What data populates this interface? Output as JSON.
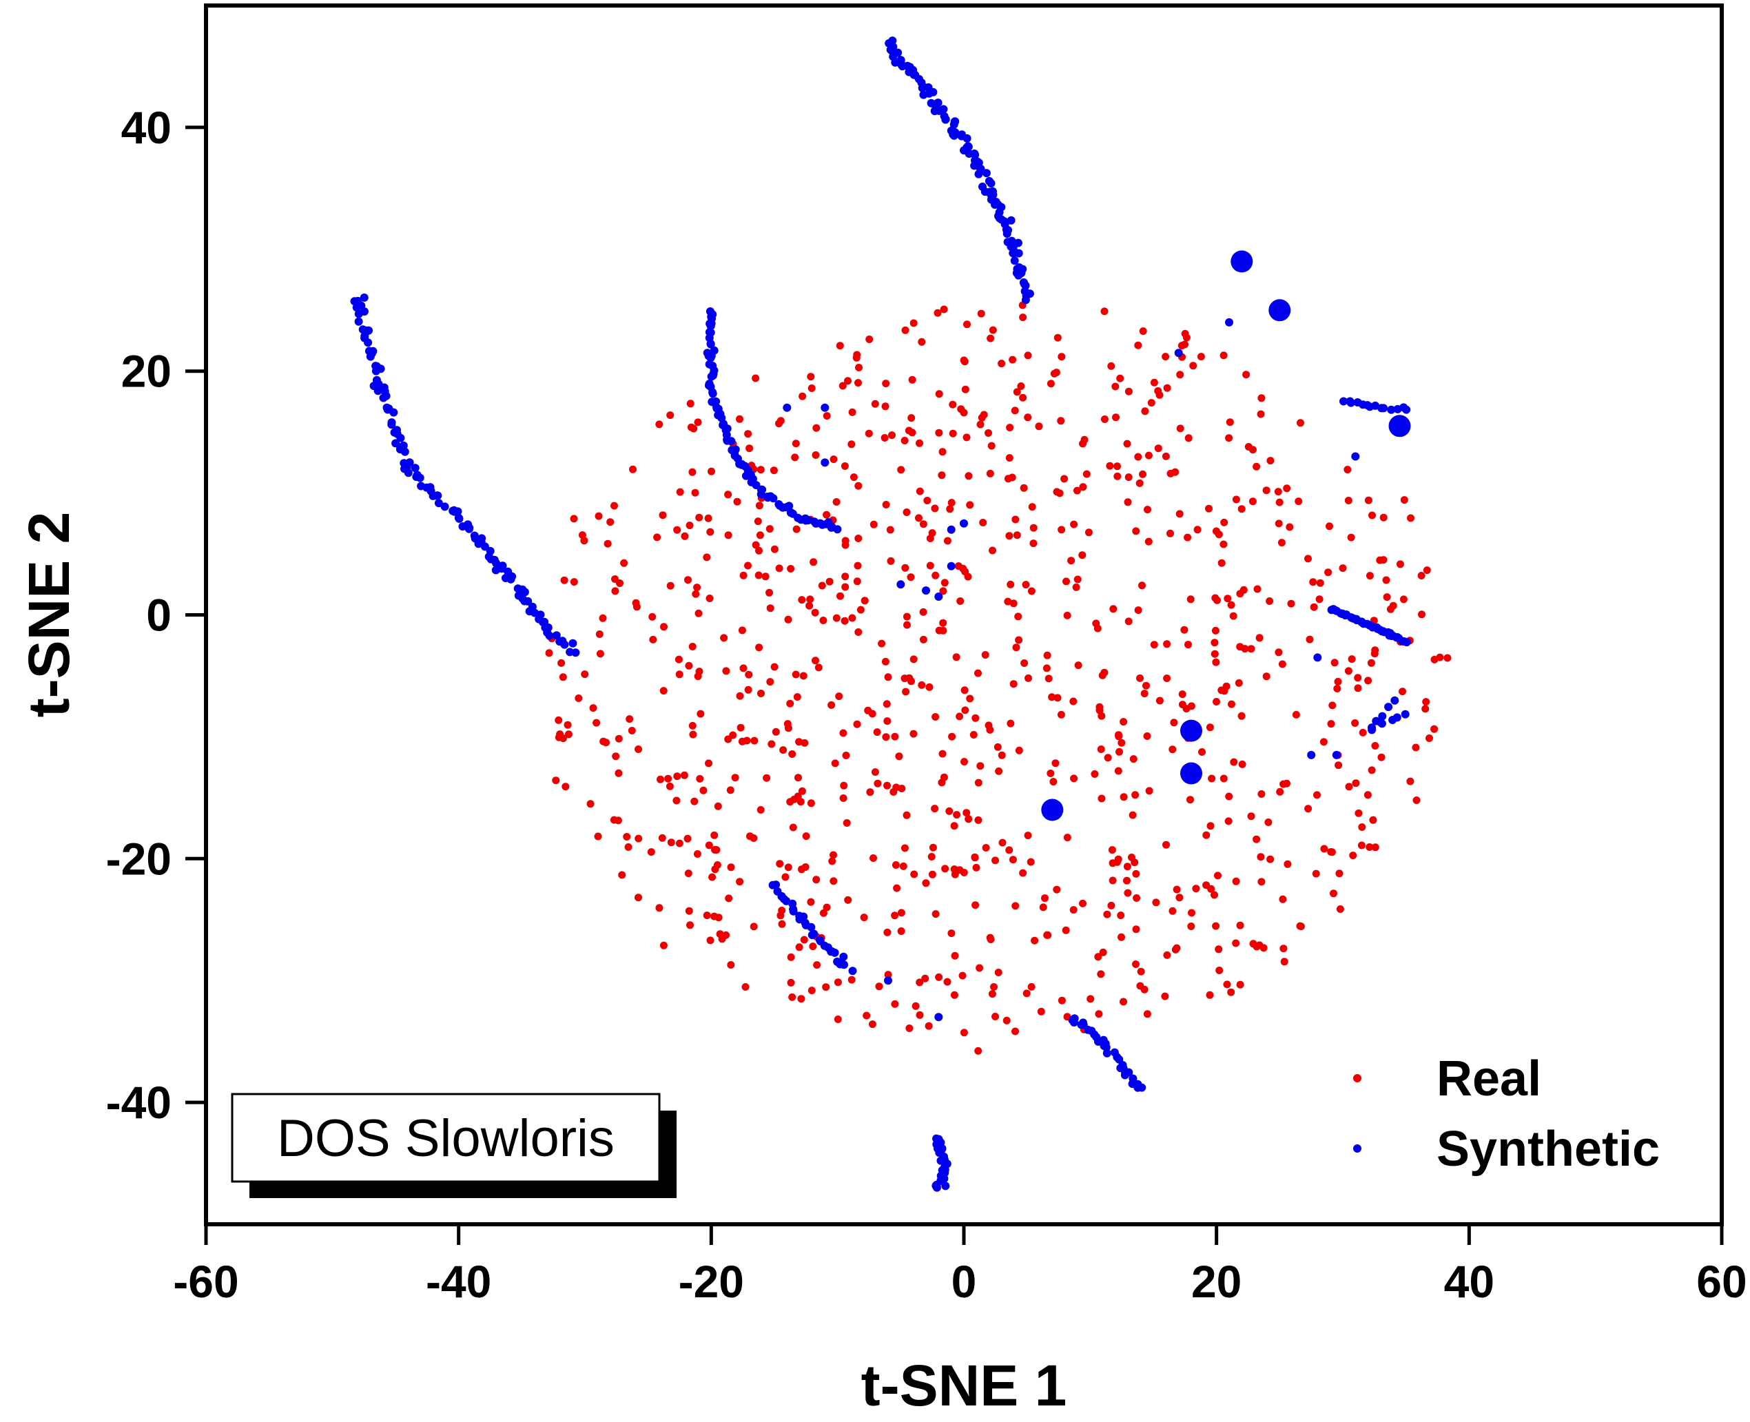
{
  "chart_data": {
    "type": "scatter",
    "title": "",
    "xlabel": "t-SNE 1",
    "ylabel": "t-SNE 2",
    "xlim": [
      -60,
      60
    ],
    "ylim": [
      -50,
      50
    ],
    "xticks": [
      -60,
      -40,
      -20,
      0,
      20,
      40,
      60
    ],
    "yticks": [
      -40,
      -20,
      0,
      20,
      40
    ],
    "xtick_labels": [
      "-60",
      "-40",
      "-20",
      "0",
      "20",
      "40",
      "60"
    ],
    "ytick_labels": [
      "-40",
      "-20",
      "0",
      "20",
      "40"
    ],
    "grid": false,
    "legend": {
      "position": "bottom-right",
      "entries": [
        "Real",
        "Synthetic"
      ]
    },
    "annotation": "DOS Slowloris",
    "colors": {
      "real": "#ee0000",
      "synthetic": "#0000ee",
      "axis": "#000000"
    },
    "series": [
      {
        "name": "Real",
        "color": "#ee0000",
        "cloud": {
          "center": [
            2,
            -5
          ],
          "radius_x": 36,
          "radius_y": 31,
          "approx_points": 900,
          "seed": 7
        }
      },
      {
        "name": "Synthetic",
        "color": "#0000ee",
        "polylines": [
          {
            "path": [
              [
                -48,
                26
              ],
              [
                -46,
                18
              ],
              [
                -44,
                12
              ],
              [
                -40,
                8
              ],
              [
                -36,
                3
              ],
              [
                -33,
                -1
              ],
              [
                -31,
                -3
              ]
            ],
            "n": 120,
            "spread": 0.6
          },
          {
            "path": [
              [
                -20,
                25
              ],
              [
                -20,
                18
              ],
              [
                -18,
                13
              ],
              [
                -16,
                10
              ],
              [
                -13,
                8
              ],
              [
                -10,
                7
              ]
            ],
            "n": 90,
            "spread": 0.4
          },
          {
            "path": [
              [
                -6,
                47
              ],
              [
                -3,
                43
              ],
              [
                0,
                39
              ],
              [
                2,
                35
              ],
              [
                4,
                30
              ],
              [
                5,
                26
              ]
            ],
            "n": 110,
            "spread": 0.7
          },
          {
            "path": [
              [
                29,
                0.5
              ],
              [
                32,
                -0.8
              ],
              [
                35,
                -2.2
              ]
            ],
            "n": 40,
            "spread": 0.15
          },
          {
            "path": [
              [
                30,
                17.5
              ],
              [
                33,
                17
              ],
              [
                35,
                17
              ]
            ],
            "n": 14,
            "spread": 0.2
          },
          {
            "path": [
              [
                8.5,
                -33
              ],
              [
                11,
                -35
              ],
              [
                14,
                -39
              ]
            ],
            "n": 30,
            "spread": 0.5
          },
          {
            "path": [
              [
                -15,
                -22
              ],
              [
                -12,
                -26
              ],
              [
                -9,
                -29
              ]
            ],
            "n": 30,
            "spread": 0.6
          },
          {
            "path": [
              [
                -2,
                -43
              ],
              [
                -1.5,
                -46
              ],
              [
                -2,
                -47
              ]
            ],
            "n": 30,
            "spread": 0.6
          },
          {
            "path": [
              [
                34,
                -7
              ],
              [
                32,
                -9.5
              ],
              [
                35,
                -8
              ]
            ],
            "n": 10,
            "spread": 0.2
          }
        ],
        "points": [
          [
            -1,
            7
          ],
          [
            -5,
            2.5
          ],
          [
            -2,
            1.5
          ],
          [
            -1,
            4
          ],
          [
            0,
            7.5
          ],
          [
            -3,
            2
          ],
          [
            -11,
            12.5
          ],
          [
            -14,
            17
          ],
          [
            -11,
            17
          ],
          [
            17,
            21.5
          ],
          [
            21,
            24
          ],
          [
            28,
            -3.5
          ],
          [
            31,
            13
          ],
          [
            -6,
            -30
          ],
          [
            -2,
            -33
          ],
          [
            7,
            -16
          ],
          [
            7,
            -16.3
          ],
          [
            18,
            -13
          ],
          [
            18,
            -13.2
          ],
          [
            18,
            -9.5
          ],
          [
            18.2,
            -9.6
          ],
          [
            22,
            29
          ],
          [
            22.3,
            29.2
          ],
          [
            25,
            25
          ],
          [
            25.2,
            25.1
          ],
          [
            34.5,
            15.5
          ],
          [
            34.7,
            15.3
          ],
          [
            27.5,
            -11.5
          ],
          [
            29.5,
            -11.5
          ]
        ],
        "big_points": [
          [
            7,
            -16
          ],
          [
            18,
            -13
          ],
          [
            18,
            -9.5
          ],
          [
            22,
            29
          ],
          [
            25,
            25
          ],
          [
            34.5,
            15.5
          ]
        ]
      }
    ]
  }
}
